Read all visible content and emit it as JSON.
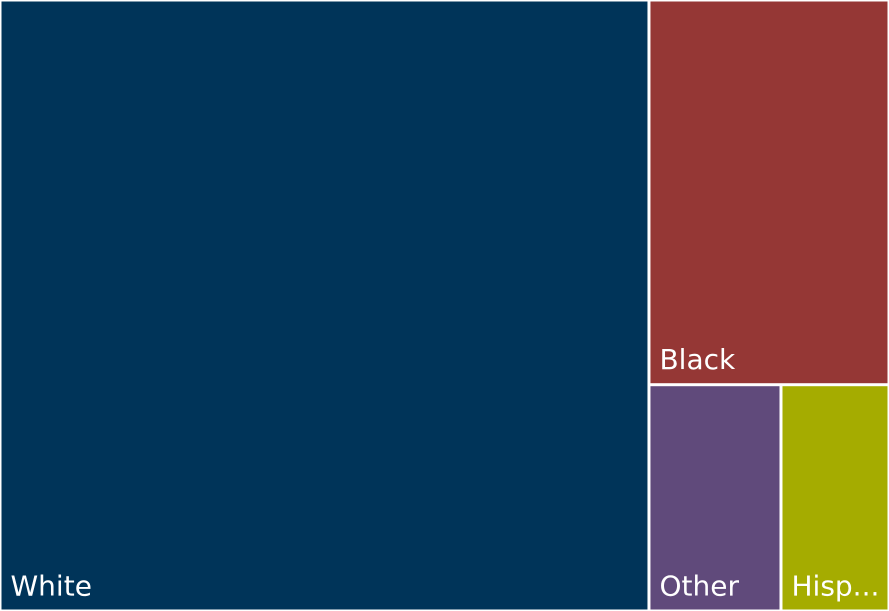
{
  "chart_data": {
    "type": "treemap",
    "title": "",
    "items": [
      {
        "name": "White",
        "label": "White",
        "value": 73,
        "color": "#003459"
      },
      {
        "name": "Black",
        "label": "Black",
        "value": 17,
        "color": "#953735"
      },
      {
        "name": "Other",
        "label": "Other",
        "value": 5.5,
        "color": "#604a7b"
      },
      {
        "name": "Hispanic",
        "label": "Hisp...",
        "value": 4.5,
        "color": "#a5ac00"
      }
    ]
  }
}
